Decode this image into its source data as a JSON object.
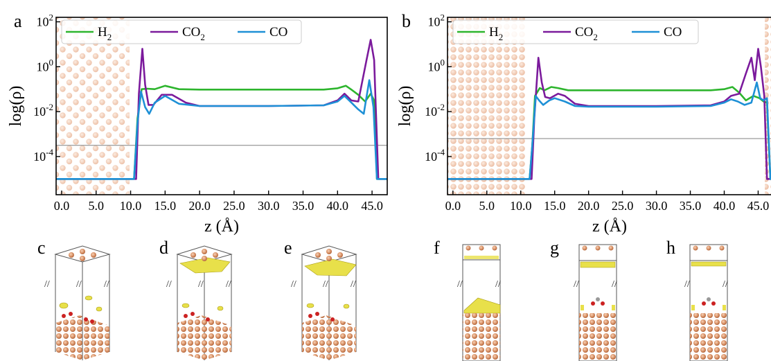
{
  "panel_labels": [
    "a",
    "b",
    "c",
    "d",
    "e",
    "f",
    "g",
    "h"
  ],
  "colors": {
    "H2": "#2db52d",
    "CO2": "#7b1a9c",
    "CO": "#1e90d6",
    "copper": "#d9885c",
    "isosurface": "#e8e04a"
  },
  "chart_data": [
    {
      "type": "line",
      "panel": "a",
      "xlabel": "z (Å)",
      "ylabel": "log(ρ)",
      "xlim": [
        -0.8,
        47.2
      ],
      "ylim": [
        -5.7,
        2.2
      ],
      "y_scale": "log10 of density",
      "x_ticks": [
        "0.0",
        "5.0",
        "10.0",
        "15.0",
        "20.0",
        "25.0",
        "30.0",
        "35.0",
        "40.0",
        "45.0"
      ],
      "y_ticks": [
        {
          "base": "10",
          "exp": "2",
          "value": 2
        },
        {
          "base": "10",
          "exp": "0",
          "value": 0
        },
        {
          "base": "10",
          "exp": "-2",
          "value": -2
        },
        {
          "base": "10",
          "exp": "-4",
          "value": -4
        }
      ],
      "reference_line_y": -3.5,
      "legend": "top",
      "series": [
        {
          "name": "H",
          "sub": "2",
          "key": "H2",
          "x": [
            -0.8,
            10.5,
            11.0,
            11.6,
            12.4,
            13.5,
            15.0,
            17.0,
            20,
            30,
            38,
            40,
            41.2,
            42,
            43,
            44,
            44.8,
            45.3,
            45.7,
            46.2,
            47.2
          ],
          "y": [
            -5,
            -5,
            -2.3,
            -1.0,
            -0.98,
            -1.0,
            -0.85,
            -1.0,
            -1.02,
            -1.02,
            -1.02,
            -0.96,
            -0.85,
            -1.02,
            -1.25,
            -1.55,
            -1.2,
            -1.5,
            -5,
            -5,
            -5
          ]
        },
        {
          "name": "CO",
          "sub": "2",
          "key": "CO2",
          "x": [
            -0.8,
            10.8,
            11.2,
            11.7,
            12.1,
            12.6,
            13.3,
            14.5,
            16,
            18,
            20,
            30,
            38,
            40,
            41,
            42,
            43,
            44.2,
            44.8,
            45.3,
            45.9,
            46.3,
            47.2
          ],
          "y": [
            -5,
            -5,
            -1.2,
            0.8,
            -0.8,
            -1.7,
            -1.7,
            -1.25,
            -1.25,
            -1.6,
            -1.75,
            -1.75,
            -1.72,
            -1.5,
            -1.2,
            -1.5,
            -1.55,
            0.3,
            1.2,
            0.3,
            -5,
            -5,
            -5
          ]
        },
        {
          "name": "CO",
          "sub": "",
          "key": "CO",
          "x": [
            -0.8,
            10.5,
            11.0,
            11.5,
            12.1,
            12.7,
            13.5,
            15.0,
            17.0,
            20,
            30,
            38,
            40,
            41.0,
            42,
            43,
            43.8,
            44.6,
            45.2,
            45.7,
            46.2,
            47.2
          ],
          "y": [
            -5,
            -5,
            -2.5,
            -1.1,
            -1.8,
            -2.1,
            -1.6,
            -1.3,
            -1.65,
            -1.75,
            -1.75,
            -1.72,
            -1.55,
            -1.3,
            -1.6,
            -1.9,
            -2.1,
            -0.6,
            -1.8,
            -5,
            -5,
            -5
          ]
        }
      ]
    },
    {
      "type": "line",
      "panel": "b",
      "xlabel": "z (Å)",
      "ylabel": "log(ρ)",
      "xlim": [
        -0.8,
        47.2
      ],
      "ylim": [
        -5.7,
        2.2
      ],
      "y_scale": "log10 of density",
      "x_ticks": [
        "0.0",
        "5.0",
        "10.0",
        "15.0",
        "20.0",
        "25.0",
        "30.0",
        "35.0",
        "40.0",
        "45.0"
      ],
      "y_ticks": [
        {
          "base": "10",
          "exp": "2",
          "value": 2
        },
        {
          "base": "10",
          "exp": "0",
          "value": 0
        },
        {
          "base": "10",
          "exp": "-2",
          "value": -2
        },
        {
          "base": "10",
          "exp": "-4",
          "value": -4
        }
      ],
      "reference_line_y": -3.2,
      "legend": "top",
      "series": [
        {
          "name": "H",
          "sub": "2",
          "key": "H2",
          "x": [
            -0.8,
            11.3,
            11.7,
            12.1,
            12.8,
            13.5,
            14.5,
            15.5,
            17,
            20,
            30,
            38,
            40,
            41.2,
            42.2,
            43.2,
            44.3,
            45.2,
            45.8,
            46.3,
            46.8,
            47.2
          ],
          "y": [
            -5,
            -5,
            -3.5,
            -1.3,
            -0.95,
            -1.05,
            -0.9,
            -0.95,
            -1.05,
            -1.05,
            -1.05,
            -1.05,
            -1.0,
            -0.9,
            -1.15,
            -1.5,
            -1.3,
            -1.4,
            -1.55,
            -1.6,
            -5,
            -5
          ]
        },
        {
          "name": "CO",
          "sub": "2",
          "key": "CO2",
          "x": [
            -0.8,
            11.6,
            12.0,
            12.6,
            13.1,
            13.6,
            14.3,
            15.5,
            16.5,
            18,
            20,
            30,
            38,
            40,
            41,
            42.2,
            43.2,
            44.0,
            44.5,
            45.0,
            45.4,
            45.9,
            46.3,
            46.8,
            47.2
          ],
          "y": [
            -5,
            -5,
            -2.3,
            0.4,
            -0.7,
            -1.35,
            -1.4,
            -1.2,
            -1.3,
            -1.65,
            -1.75,
            -1.75,
            -1.72,
            -1.55,
            -1.3,
            -1.2,
            -0.3,
            0.4,
            -0.6,
            0.8,
            0,
            -1.3,
            -5,
            -5,
            -5
          ]
        },
        {
          "name": "CO",
          "sub": "",
          "key": "CO",
          "x": [
            -0.8,
            11.3,
            11.7,
            12.2,
            12.7,
            13.3,
            14.2,
            15.0,
            16.5,
            18,
            20,
            30,
            38,
            40,
            41,
            42,
            43,
            44,
            44.8,
            45.3,
            45.8,
            46.3,
            46.8,
            47.2
          ],
          "y": [
            -5,
            -5,
            -3.5,
            -1.3,
            -1.5,
            -1.7,
            -1.5,
            -1.4,
            -1.55,
            -1.75,
            -1.78,
            -1.78,
            -1.75,
            -1.6,
            -1.45,
            -1.55,
            -1.7,
            -1.6,
            -0.7,
            -1.4,
            -1.5,
            -1.4,
            -5,
            -5
          ]
        }
      ]
    }
  ]
}
